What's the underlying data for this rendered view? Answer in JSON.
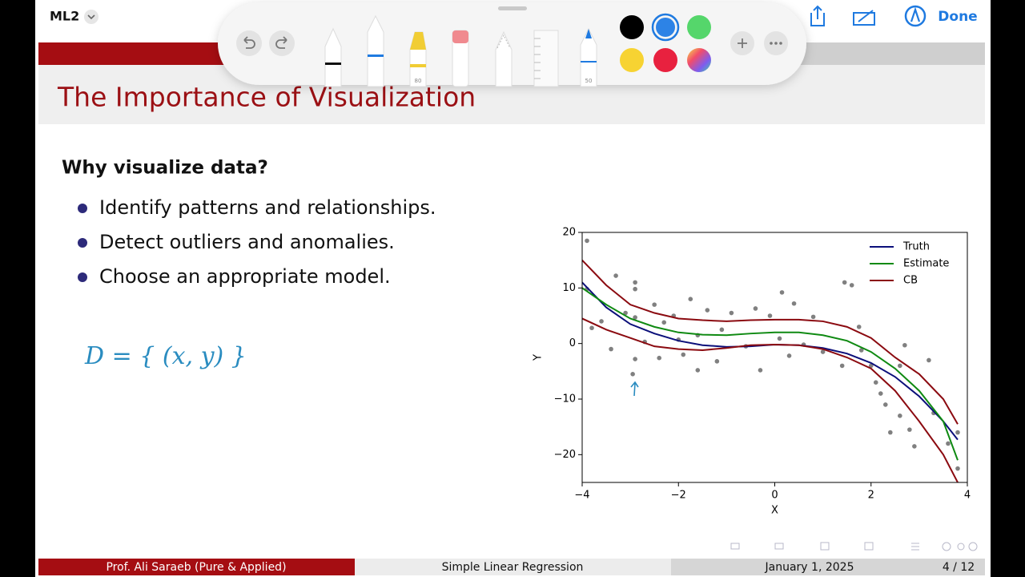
{
  "app": {
    "document_title": "ML2",
    "done_button": "Done",
    "marker_labels": [
      "80",
      "50"
    ]
  },
  "slide": {
    "title": "The Importance of Visualization",
    "heading": "Why visualize data?",
    "bullets": [
      "Identify patterns and relationships.",
      "Detect outliers and anomalies.",
      "Choose an appropriate model."
    ],
    "ink_text": "D = { (x, y) }",
    "footer": {
      "author": "Prof. Ali Saraeb  (Pure & Applied)",
      "topic": "Simple Linear Regression",
      "date": "January 1, 2025",
      "page": "4 / 12"
    }
  },
  "chart_data": {
    "type": "line",
    "xlabel": "X",
    "ylabel": "Y",
    "xlim": [
      -4,
      4
    ],
    "ylim": [
      -25,
      20
    ],
    "xticks": [
      {
        "value": -4,
        "label": "−4"
      },
      {
        "value": -2,
        "label": "−2"
      },
      0,
      2,
      4
    ],
    "yticks": [
      {
        "value": -20,
        "label": "−20"
      },
      {
        "value": -10,
        "label": "−10"
      },
      0,
      10,
      20
    ],
    "legend": "upper right",
    "x": [
      -4,
      -3.5,
      -3,
      -2.5,
      -2,
      -1.5,
      -1,
      -0.5,
      0,
      0.5,
      1,
      1.5,
      2,
      2.5,
      3,
      3.5,
      3.8
    ],
    "series": [
      {
        "name": "Truth",
        "color": "#0b0f7a",
        "values": [
          11,
          6.5,
          3.5,
          1.8,
          0.5,
          -0.3,
          -0.6,
          -0.5,
          -0.2,
          -0.3,
          -0.8,
          -1.8,
          -3.5,
          -6,
          -9.5,
          -14,
          -17.3
        ]
      },
      {
        "name": "Estimate",
        "color": "#0f8a12",
        "values": [
          10,
          7,
          4.5,
          3,
          2,
          1.6,
          1.5,
          1.8,
          2,
          2,
          1.5,
          0.5,
          -1.5,
          -4.5,
          -8.5,
          -14,
          -21
        ]
      },
      {
        "name": "CB",
        "color": "#8b0a10",
        "values": [
          15,
          10.5,
          7,
          5.5,
          4.5,
          4.2,
          4,
          4.2,
          4.3,
          4.3,
          4,
          3,
          1,
          -2.5,
          -5.5,
          -10,
          -14.5
        ],
        "lower_values": [
          4.5,
          2.5,
          1,
          -0.5,
          -1,
          -1.2,
          -0.8,
          -0.3,
          -0.2,
          -0.3,
          -1,
          -2.5,
          -4.5,
          -8.5,
          -14,
          -20,
          -25
        ]
      }
    ],
    "scatter": {
      "color": "#808080",
      "x": [
        -3.9,
        -3.9,
        -3.8,
        -3.6,
        -3.4,
        -3.3,
        -3.1,
        -2.9,
        -2.9,
        -2.9,
        -2.95,
        -2.9,
        -2.7,
        -2.5,
        -2.4,
        -2.3,
        -2.1,
        -2,
        -1.9,
        -1.75,
        -1.6,
        -1.6,
        -1.4,
        -1.2,
        -1.1,
        -0.9,
        -0.6,
        -0.4,
        -0.3,
        -0.1,
        0.1,
        0.15,
        0.3,
        0.4,
        0.6,
        0.8,
        1,
        1.4,
        1.45,
        1.6,
        1.75,
        1.8,
        2,
        2.1,
        2.2,
        2.3,
        2.4,
        2.6,
        2.6,
        2.7,
        2.8,
        2.9,
        3.2,
        3.3,
        3.6,
        3.8,
        3.8
      ],
      "y": [
        18.5,
        9.8,
        2.8,
        4,
        -1,
        12.2,
        5.5,
        11,
        9.8,
        -2.8,
        -5.5,
        4.7,
        0.3,
        7,
        -2.6,
        3.8,
        5,
        0.7,
        -2,
        8,
        1.5,
        -4.8,
        6,
        -3.2,
        2.5,
        5.5,
        -0.5,
        6.3,
        -4.8,
        5,
        0.9,
        9.2,
        -2.2,
        7.2,
        -0.2,
        4.8,
        -1.5,
        -4,
        11,
        10.5,
        3,
        -1.2,
        -4,
        -7,
        -9,
        -11,
        -16,
        -4,
        -13,
        -0.3,
        -15.5,
        -18.5,
        -3,
        -12.5,
        -18,
        -22.5,
        -16
      ]
    }
  }
}
